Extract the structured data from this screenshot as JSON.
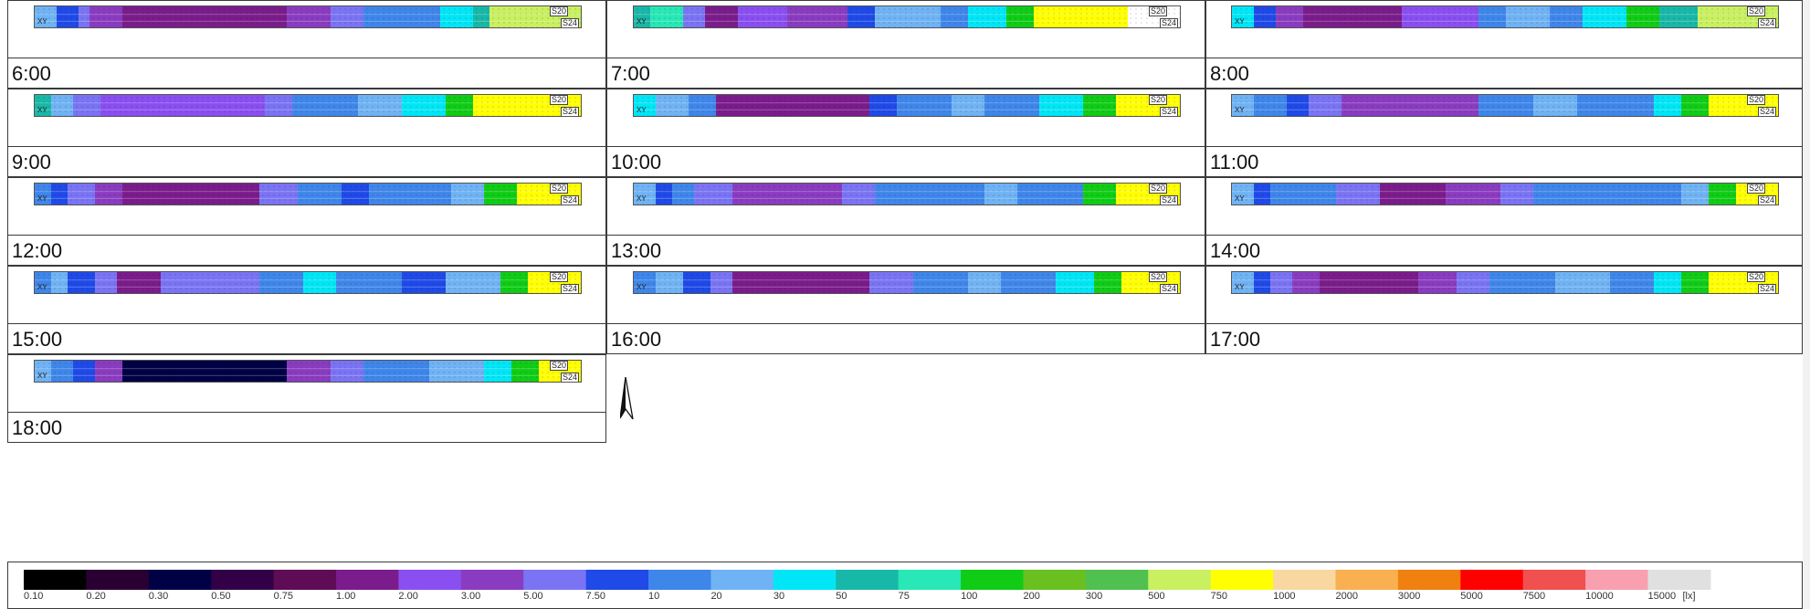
{
  "sensors": {
    "upper": "S20",
    "lower": "S24"
  },
  "origin_mark": "XY",
  "panels": [
    {
      "time": "6:00"
    },
    {
      "time": "7:00"
    },
    {
      "time": "8:00"
    },
    {
      "time": "9:00"
    },
    {
      "time": "10:00"
    },
    {
      "time": "11:00"
    },
    {
      "time": "12:00"
    },
    {
      "time": "13:00"
    },
    {
      "time": "14:00"
    },
    {
      "time": "15:00"
    },
    {
      "time": "16:00"
    },
    {
      "time": "17:00"
    },
    {
      "time": "18:00"
    }
  ],
  "north_icon": "north-arrow-icon",
  "legend": {
    "unit": "[lx]",
    "ticks": [
      "0.10",
      "0.20",
      "0.30",
      "0.50",
      "0.75",
      "1.00",
      "2.00",
      "3.00",
      "5.00",
      "7.50",
      "10",
      "20",
      "30",
      "50",
      "75",
      "100",
      "200",
      "300",
      "500",
      "750",
      "1000",
      "2000",
      "3000",
      "5000",
      "7500",
      "10000",
      "15000"
    ],
    "colors": [
      "#000000",
      "#2a0033",
      "#000045",
      "#320046",
      "#5d0c55",
      "#7b1c8c",
      "#8a4ff0",
      "#8a3cc0",
      "#7a74f4",
      "#1f4ae8",
      "#3f86ea",
      "#6fb3f4",
      "#00e6f6",
      "#18b8a8",
      "#27e8b6",
      "#10cc16",
      "#6ac020",
      "#50c050",
      "#c8f060",
      "#ffff00",
      "#f8d8a0",
      "#f8b050",
      "#f08010",
      "#ff0000",
      "#f05050",
      "#f8a0b0",
      "#e0e0e0"
    ]
  }
}
